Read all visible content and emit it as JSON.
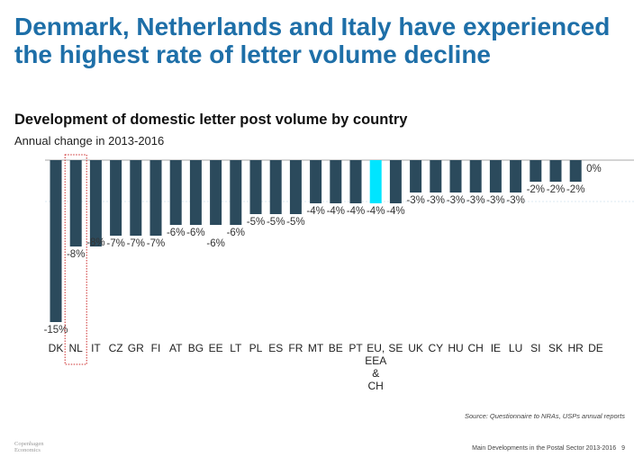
{
  "header": {
    "title": "Denmark, Netherlands and Italy have experienced the highest rate of letter volume decline",
    "subtitle": "Development of domestic letter post volume by country",
    "unit": "Annual change in 2013-2016"
  },
  "footer": {
    "source": "Source: Questionnaire to NRAs, USPs annual reports",
    "report_title": "Main Developments in the Postal Sector 2013-2016",
    "page_number": "9",
    "logo_text": "Copenhagen Economics"
  },
  "chart_data": {
    "type": "bar",
    "title": "Development of domestic letter post volume by country",
    "ylabel": "Annual change in 2013-2016",
    "xlabel": "",
    "ylim": [
      -16,
      0
    ],
    "grid": false,
    "categories": [
      "DK",
      "NL",
      "IT",
      "CZ",
      "GR",
      "FI",
      "AT",
      "BG",
      "EE",
      "LT",
      "PL",
      "ES",
      "FR",
      "MT",
      "BE",
      "PT",
      "EU, EEA & CH",
      "SE",
      "UK",
      "CY",
      "HU",
      "CH",
      "IE",
      "LU",
      "SI",
      "SK",
      "HR",
      "DE"
    ],
    "values": [
      -15,
      -8,
      -8,
      -7,
      -7,
      -7,
      -6,
      -6,
      -6,
      -6,
      -5,
      -5,
      -5,
      -4,
      -4,
      -4,
      -4,
      -4,
      -3,
      -3,
      -3,
      -3,
      -3,
      -3,
      -2,
      -2,
      -2,
      0
    ],
    "value_labels": [
      "-15%",
      "-8%",
      "-8%",
      "-7%",
      "-7%",
      "-7%",
      "-6%",
      "-6%",
      "-6%",
      "-6%",
      "-5%",
      "-5%",
      "-5%",
      "-4%",
      "-4%",
      "-4%",
      "-4%",
      "-4%",
      "-3%",
      "-3%",
      "-3%",
      "-3%",
      "-3%",
      "-3%",
      "-2%",
      "-2%",
      "-2%",
      "0%"
    ],
    "highlight_category": "EU, EEA & CH",
    "outlined_category": "NL",
    "colors": {
      "bar": "#2b4a5c",
      "highlight": "#00e5ff",
      "outline": "#cc2a2a",
      "title": "#1e6fa8"
    }
  }
}
